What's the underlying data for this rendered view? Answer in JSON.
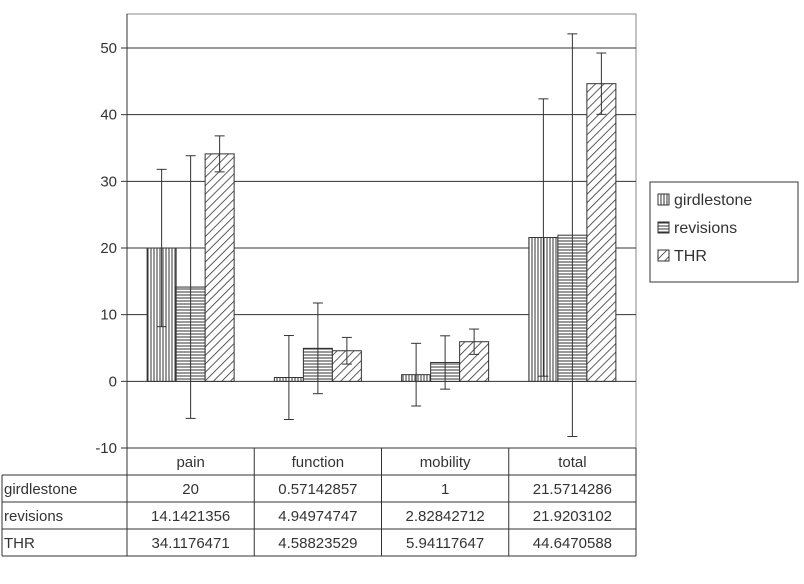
{
  "chart_data": {
    "type": "bar",
    "categories": [
      "pain",
      "function",
      "mobility",
      "total"
    ],
    "series": [
      {
        "name": "girdlestone",
        "values": [
          20,
          0.57142857,
          1,
          21.5714286
        ],
        "error": [
          11.8,
          6.3,
          4.7,
          20.8
        ],
        "pattern": "vertical-lines"
      },
      {
        "name": "revisions",
        "values": [
          14.1421356,
          4.94974747,
          2.82842712,
          21.9203102
        ],
        "error": [
          19.7,
          6.8,
          4.0,
          30.2
        ],
        "pattern": "horizontal-lines"
      },
      {
        "name": "THR",
        "values": [
          34.1176471,
          4.58823529,
          5.94117647,
          44.6470588
        ],
        "error": [
          2.7,
          2.0,
          1.9,
          4.6
        ],
        "pattern": "diagonal-lines"
      }
    ],
    "ylim": [
      -10,
      55
    ],
    "yticks": [
      -10,
      0,
      10,
      20,
      30,
      40,
      50
    ],
    "ytick_labels": [
      "-10",
      "0",
      "10",
      "20",
      "30",
      "40",
      "50"
    ],
    "grid": true,
    "legend": "right",
    "data_table": {
      "header": [
        "pain",
        "function",
        "mobility",
        "total"
      ],
      "rows": [
        {
          "label": "girdlestone",
          "cells": [
            "20",
            "0.57142857",
            "1",
            "21.5714286"
          ]
        },
        {
          "label": "revisions",
          "cells": [
            "14.1421356",
            "4.94974747",
            "2.82842712",
            "21.9203102"
          ]
        },
        {
          "label": "THR",
          "cells": [
            "34.1176471",
            "4.58823529",
            "5.94117647",
            "44.6470588"
          ]
        }
      ]
    },
    "colors": {
      "line": "#333333",
      "gridline": "#333333",
      "fill": "#ffffff"
    }
  }
}
